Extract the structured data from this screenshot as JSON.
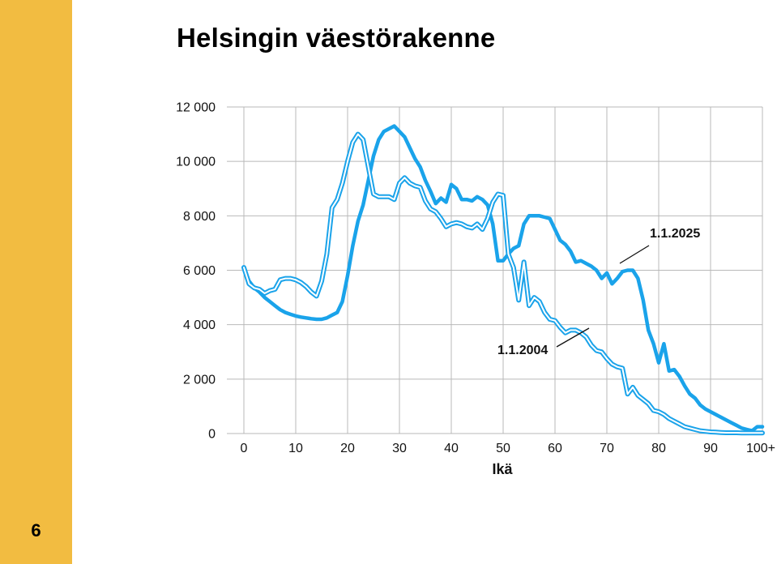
{
  "page": {
    "title": "Helsingin väestörakenne",
    "page_number": "6",
    "colors": {
      "sidebar": "#f2bc41",
      "series_2025": "#1aa3ea",
      "series_2004": "#1aa3ea",
      "grid": "#b9b9b9"
    }
  },
  "chart_data": {
    "type": "line",
    "xlabel": "Ikä",
    "ylabel": "",
    "xlim": [
      0,
      100
    ],
    "ylim": [
      0,
      12000
    ],
    "x_ticks": [
      "0",
      "10",
      "20",
      "30",
      "40",
      "50",
      "60",
      "70",
      "80",
      "90",
      "100+"
    ],
    "y_ticks": [
      "0",
      "2 000",
      "4 000",
      "6 000",
      "8 000",
      "10 000",
      "12 000"
    ],
    "grid": true,
    "legend": "none",
    "annotations": [
      {
        "text": "1.1.2025",
        "series": "1.1.2025"
      },
      {
        "text": "1.1.2004",
        "series": "1.1.2004"
      }
    ],
    "series": [
      {
        "name": "1.1.2025",
        "style": "solid",
        "x": [
          0,
          1,
          2,
          3,
          4,
          5,
          6,
          7,
          8,
          9,
          10,
          11,
          12,
          13,
          14,
          15,
          16,
          17,
          18,
          19,
          20,
          21,
          22,
          23,
          24,
          25,
          26,
          27,
          28,
          29,
          30,
          31,
          32,
          33,
          34,
          35,
          36,
          37,
          38,
          39,
          40,
          41,
          42,
          43,
          44,
          45,
          46,
          47,
          48,
          49,
          50,
          51,
          52,
          53,
          54,
          55,
          56,
          57,
          58,
          59,
          60,
          61,
          62,
          63,
          64,
          65,
          66,
          67,
          68,
          69,
          70,
          71,
          72,
          73,
          74,
          75,
          76,
          77,
          78,
          79,
          80,
          81,
          82,
          83,
          84,
          85,
          86,
          87,
          88,
          89,
          90,
          91,
          92,
          93,
          94,
          95,
          96,
          97,
          98,
          99,
          100
        ],
        "values": [
          6100,
          5600,
          5350,
          5200,
          5000,
          4850,
          4700,
          4550,
          4450,
          4380,
          4320,
          4280,
          4250,
          4220,
          4200,
          4200,
          4250,
          4350,
          4450,
          4850,
          5800,
          6900,
          7800,
          8400,
          9300,
          10200,
          10800,
          11100,
          11200,
          11300,
          11100,
          10900,
          10500,
          10100,
          9800,
          9300,
          8900,
          8450,
          8650,
          8500,
          9150,
          9000,
          8600,
          8600,
          8550,
          8700,
          8600,
          8400,
          7700,
          6350,
          6350,
          6600,
          6800,
          6900,
          7700,
          8000,
          8000,
          8000,
          7950,
          7900,
          7500,
          7100,
          6950,
          6700,
          6300,
          6350,
          6250,
          6150,
          6000,
          5700,
          5900,
          5500,
          5700,
          5950,
          6000,
          6000,
          5700,
          4900,
          3800,
          3300,
          2600,
          3300,
          2300,
          2350,
          2100,
          1750,
          1450,
          1300,
          1050,
          900,
          800,
          700,
          600,
          500,
          400,
          300,
          200,
          150,
          100,
          250,
          250
        ]
      },
      {
        "name": "1.1.2004",
        "style": "double",
        "x": [
          0,
          1,
          2,
          3,
          4,
          5,
          6,
          7,
          8,
          9,
          10,
          11,
          12,
          13,
          14,
          15,
          16,
          17,
          18,
          19,
          20,
          21,
          22,
          23,
          24,
          25,
          26,
          27,
          28,
          29,
          30,
          31,
          32,
          33,
          34,
          35,
          36,
          37,
          38,
          39,
          40,
          41,
          42,
          43,
          44,
          45,
          46,
          47,
          48,
          49,
          50,
          51,
          52,
          53,
          54,
          55,
          56,
          57,
          58,
          59,
          60,
          61,
          62,
          63,
          64,
          65,
          66,
          67,
          68,
          69,
          70,
          71,
          72,
          73,
          74,
          75,
          76,
          77,
          78,
          79,
          80,
          81,
          82,
          83,
          84,
          85,
          86,
          87,
          88,
          89,
          90,
          91,
          92,
          93,
          94,
          95,
          96,
          97,
          98,
          99,
          100
        ],
        "values": [
          6100,
          5500,
          5350,
          5300,
          5150,
          5250,
          5300,
          5650,
          5700,
          5700,
          5650,
          5550,
          5400,
          5200,
          5050,
          5600,
          6600,
          8300,
          8600,
          9200,
          10000,
          10700,
          11000,
          10800,
          9800,
          8800,
          8700,
          8700,
          8700,
          8600,
          9200,
          9400,
          9200,
          9100,
          9050,
          8550,
          8250,
          8150,
          7900,
          7600,
          7700,
          7750,
          7700,
          7600,
          7550,
          7700,
          7500,
          7900,
          8500,
          8800,
          8750,
          6600,
          6100,
          4900,
          6300,
          4700,
          5000,
          4850,
          4450,
          4200,
          4150,
          3900,
          3700,
          3800,
          3800,
          3700,
          3550,
          3250,
          3050,
          3000,
          2750,
          2550,
          2450,
          2400,
          1450,
          1700,
          1400,
          1250,
          1100,
          850,
          800,
          700,
          550,
          450,
          350,
          250,
          200,
          150,
          100,
          80,
          60,
          50,
          40,
          30,
          30,
          30,
          20,
          20,
          20,
          20,
          20
        ]
      }
    ]
  }
}
